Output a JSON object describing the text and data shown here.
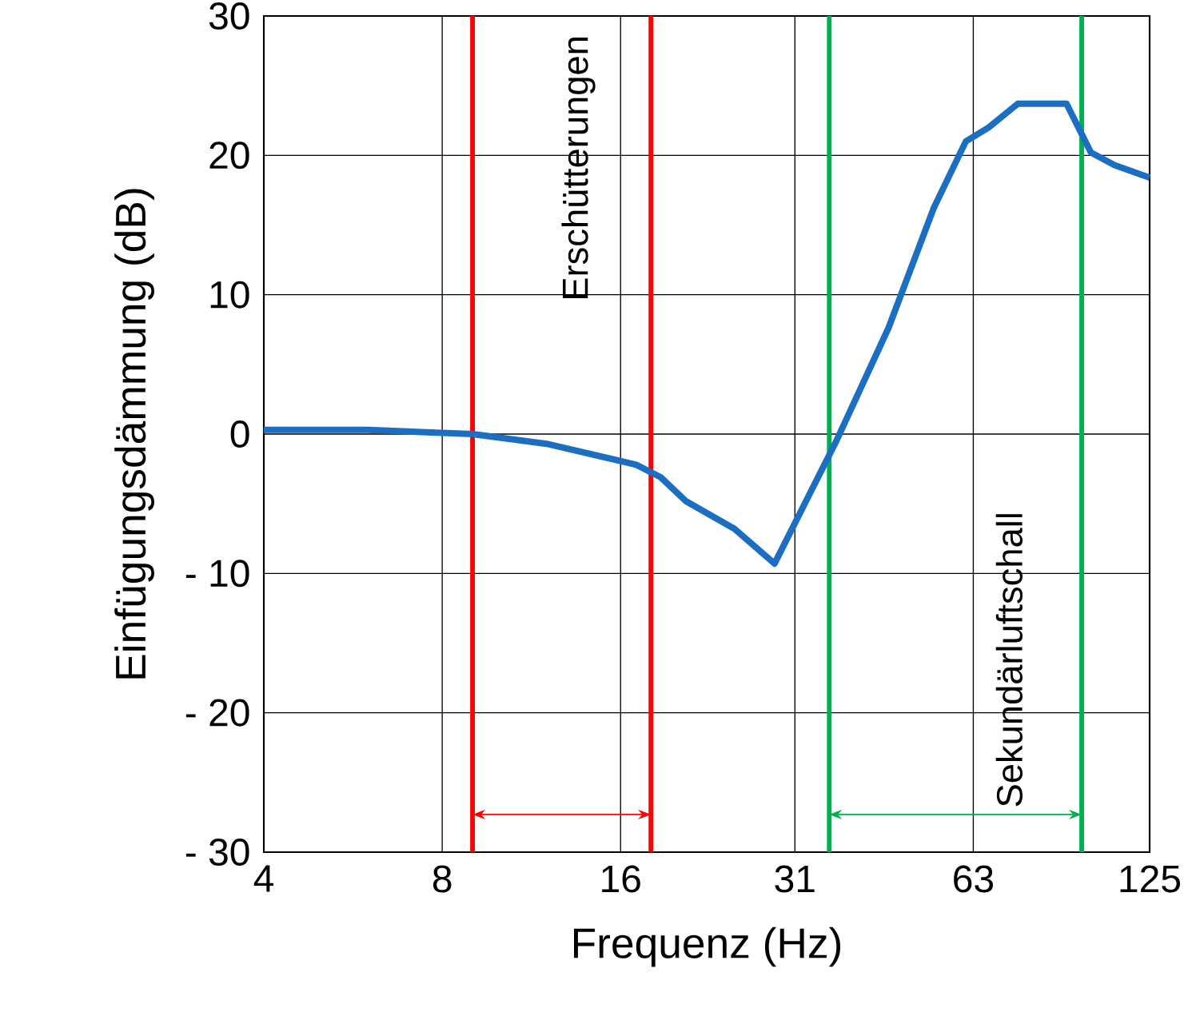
{
  "chart_data": {
    "type": "line",
    "xlabel": "Frequenz (Hz)",
    "ylabel": "Einfügungsdämmung (dB)",
    "x": [
      4,
      6,
      9,
      12,
      17,
      18.7,
      20.6,
      24.9,
      29.1,
      37,
      45.3,
      54,
      61.2,
      66.9,
      74.9,
      90.5,
      99.5,
      109,
      125
    ],
    "series": [
      {
        "color": "#1b6ec2",
        "values": [
          0.3,
          0.3,
          0,
          -0.7,
          -2.2,
          -3.1,
          -4.8,
          -6.8,
          -9.3,
          -0.5,
          7.6,
          16.2,
          21,
          22,
          23.7,
          23.7,
          20.2,
          19.3,
          18.4
        ]
      }
    ],
    "log": "x",
    "xlim": [
      4,
      125
    ],
    "ylim": [
      -30,
      30
    ],
    "xticks": [
      4,
      8,
      16,
      {
        "value": 31.5,
        "label": "31"
      },
      63,
      125
    ],
    "yticks": [
      {
        "value": -30,
        "label": "- 30"
      },
      {
        "value": -20,
        "label": "- 20"
      },
      {
        "value": -10,
        "label": "- 10"
      },
      0,
      10,
      20,
      30
    ],
    "grid": true,
    "ref_lines": [
      {
        "axis": "x",
        "value": 9,
        "color": "#ff0000"
      },
      {
        "axis": "x",
        "value": 18,
        "color": "#ff0000",
        "label": "Erschütterungen"
      },
      {
        "axis": "x",
        "value": 36,
        "color": "#00b050"
      },
      {
        "axis": "x",
        "value": 96,
        "color": "#00b050",
        "label": "Sekundärluftschall"
      }
    ]
  }
}
